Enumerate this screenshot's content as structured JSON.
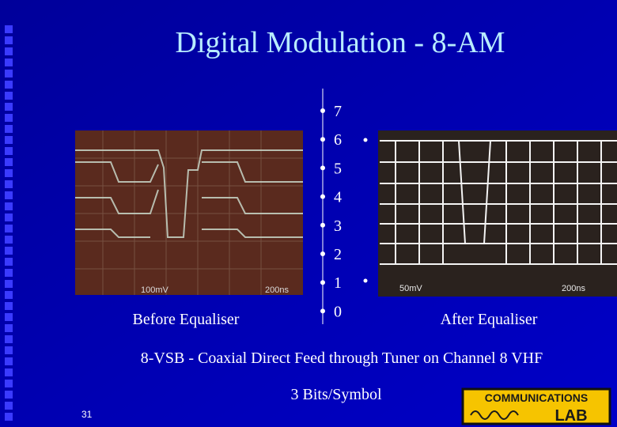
{
  "slide": {
    "title": "Digital Modulation - 8-AM",
    "levels": [
      "7",
      "6",
      "5",
      "4",
      "3",
      "2",
      "1",
      "0"
    ],
    "left_image": {
      "caption": "Before Equaliser",
      "scale": "100mV",
      "time": "200ns"
    },
    "right_image": {
      "caption": "After Equaliser",
      "scale": "50mV",
      "time": "200ns"
    },
    "subtitle": "8-VSB - Coaxial Direct Feed through Tuner on Channel 8 VHF",
    "note": "3 Bits/Symbol",
    "page_number": "31",
    "logo": {
      "top": "COMMUNICATIONS",
      "bottom": "LAB"
    }
  }
}
